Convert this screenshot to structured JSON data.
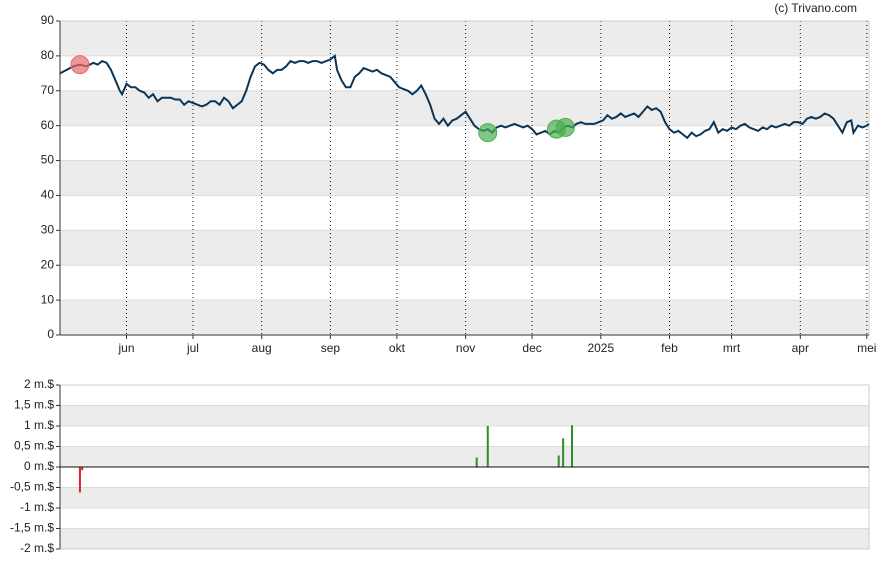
{
  "credit": "(c) Trivano.com",
  "chart_data": [
    {
      "type": "line",
      "color": "#0b3557",
      "x": [
        1,
        4,
        7,
        10,
        13,
        16,
        18,
        20,
        22,
        24,
        26,
        28,
        29,
        31,
        33,
        35,
        37,
        39,
        41,
        43,
        45,
        47,
        49,
        51,
        53,
        55,
        57,
        59,
        61,
        63,
        65,
        67,
        69,
        71,
        73,
        75,
        77,
        79,
        81,
        83,
        85,
        87,
        89,
        91,
        93,
        95,
        97,
        99,
        101,
        103,
        105,
        107,
        109,
        111,
        113,
        115,
        117,
        119,
        121,
        123,
        125,
        126,
        128,
        130,
        132,
        134,
        136,
        138,
        140,
        142,
        144,
        146,
        148,
        150,
        152,
        154,
        156,
        158,
        160,
        162,
        164,
        166,
        168,
        170,
        172,
        174,
        176,
        178,
        180,
        182,
        184,
        186,
        188,
        190,
        192,
        194,
        196,
        198,
        200,
        202,
        204,
        206,
        208,
        210,
        212,
        214,
        216,
        218,
        220,
        222,
        224,
        226,
        228,
        230,
        232,
        234,
        236,
        238,
        240,
        242,
        244,
        246,
        248,
        250,
        252,
        254,
        256,
        258,
        260,
        262,
        264,
        266,
        268,
        270,
        272,
        274,
        276,
        278,
        280,
        282,
        284,
        286,
        288,
        290,
        292,
        294,
        296,
        298,
        300,
        302,
        304,
        306,
        308,
        310,
        312,
        314,
        316,
        318,
        320,
        322,
        324,
        326,
        328,
        330,
        332,
        334,
        336,
        338,
        340,
        342,
        344,
        346,
        348,
        350,
        352,
        354,
        356,
        358,
        359,
        361,
        363,
        365,
        366
      ],
      "values": [
        75,
        76,
        77,
        77.5,
        77,
        78,
        77.5,
        78.5,
        78,
        76,
        73,
        70,
        69,
        72,
        71,
        71,
        70,
        69.5,
        68,
        69,
        67,
        68,
        68,
        68,
        67.5,
        67.5,
        66,
        67,
        66.5,
        66,
        65.5,
        66,
        67,
        67,
        66,
        68,
        67,
        65,
        66,
        67,
        70,
        74,
        77,
        78,
        77.5,
        76,
        75,
        76,
        76,
        77,
        78.5,
        78,
        78.5,
        78.5,
        78,
        78.5,
        78.5,
        78,
        78.5,
        79,
        80,
        76,
        73,
        71,
        71,
        74,
        75,
        76.5,
        76,
        75.5,
        76,
        75,
        74.5,
        74,
        72.5,
        71,
        70.5,
        70,
        69,
        70,
        71.5,
        69,
        66,
        62,
        60.5,
        62,
        60,
        61.5,
        62,
        63,
        64,
        62,
        60,
        59,
        58.5,
        59,
        58,
        59.5,
        60,
        59.5,
        60,
        60.5,
        60,
        59.5,
        60,
        59,
        57.5,
        58,
        58.5,
        57.5,
        58.5,
        58,
        59.5,
        60,
        59.5,
        60.5,
        61,
        60.5,
        60.5,
        60.5,
        61,
        61.5,
        63,
        62,
        62.5,
        63.5,
        62.5,
        63,
        63.5,
        62.5,
        64,
        65.5,
        64.5,
        65,
        64,
        61,
        59,
        58,
        58.5,
        57.5,
        56.5,
        58,
        57,
        57.5,
        58.5,
        59,
        61,
        58,
        59,
        58.5,
        59.5,
        59,
        60,
        60.5,
        59.5,
        59,
        58.5,
        59.5,
        59,
        60,
        59.5,
        60,
        60.5,
        60,
        61,
        61,
        60.5,
        62,
        62.5,
        62,
        62.5,
        63.5,
        63,
        62,
        60,
        58,
        61,
        61.5,
        58,
        60,
        59.5,
        60,
        60.5
      ],
      "markers": [
        {
          "x": 10,
          "y": 77.5,
          "color": "#e8696b"
        },
        {
          "x": 194,
          "y": 58,
          "color": "#4caf50"
        },
        {
          "x": 225,
          "y": 59,
          "color": "#4caf50"
        },
        {
          "x": 229,
          "y": 59.5,
          "color": "#4caf50"
        }
      ],
      "xlim": [
        1,
        366
      ],
      "ylim": [
        0,
        90
      ],
      "yticks": [
        0,
        10,
        20,
        30,
        40,
        50,
        60,
        70,
        80,
        90
      ],
      "xticks": [
        {
          "value": 31,
          "label": "jun"
        },
        {
          "value": 61,
          "label": "jul"
        },
        {
          "value": 92,
          "label": "aug"
        },
        {
          "value": 123,
          "label": "sep"
        },
        {
          "value": 153,
          "label": "okt"
        },
        {
          "value": 184,
          "label": "nov"
        },
        {
          "value": 214,
          "label": "dec"
        },
        {
          "value": 245,
          "label": "2025"
        },
        {
          "value": 276,
          "label": "feb"
        },
        {
          "value": 304,
          "label": "mrt"
        },
        {
          "value": 335,
          "label": "apr"
        },
        {
          "value": 365,
          "label": "mei"
        }
      ]
    },
    {
      "type": "bar",
      "x": [
        10,
        11,
        189,
        194,
        226,
        228,
        232
      ],
      "values": [
        -0.62,
        -0.08,
        0.23,
        1.0,
        0.28,
        0.7,
        1.02
      ],
      "colors": [
        "#e0242f",
        "#e0242f",
        "#2e8b2e",
        "#2e8b2e",
        "#2e8b2e",
        "#2e8b2e",
        "#2e8b2e"
      ],
      "xlim": [
        1,
        366
      ],
      "ylim": [
        -2,
        2
      ],
      "yticks": [
        {
          "value": -2,
          "label": "-2 m.$"
        },
        {
          "value": -1.5,
          "label": "-1,5 m.$"
        },
        {
          "value": -1,
          "label": "-1 m.$"
        },
        {
          "value": -0.5,
          "label": "-0,5 m.$"
        },
        {
          "value": 0,
          "label": "0 m.$"
        },
        {
          "value": 0.5,
          "label": "0,5 m.$"
        },
        {
          "value": 1,
          "label": "1 m.$"
        },
        {
          "value": 1.5,
          "label": "1,5 m.$"
        },
        {
          "value": 2,
          "label": "2 m.$"
        }
      ]
    }
  ]
}
